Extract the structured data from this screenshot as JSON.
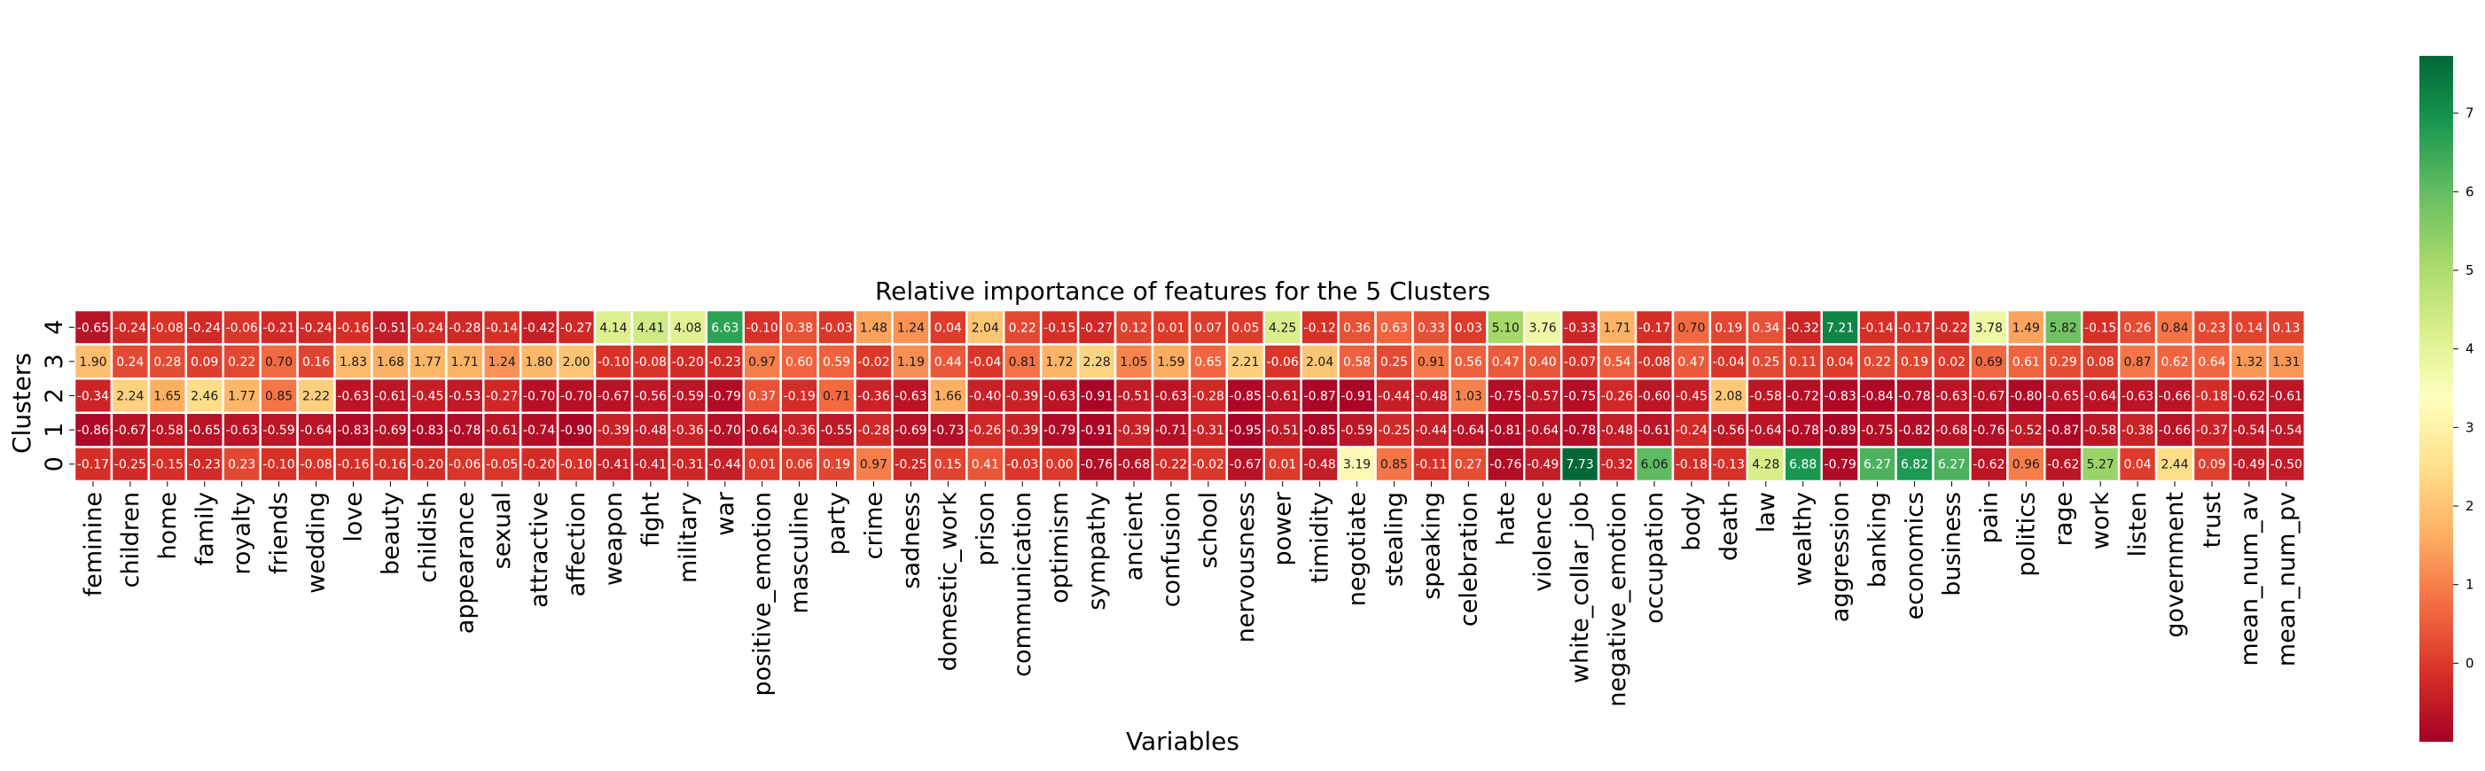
{
  "chart_data": {
    "type": "heatmap",
    "title": "Relative importance of features for the 5 Clusters",
    "xlabel": "Variables",
    "ylabel": "Clusters",
    "colormap": "RdYlGn",
    "colorbar": {
      "range": [
        -1.0,
        7.73
      ],
      "ticks": [
        0,
        1,
        2,
        3,
        4,
        5,
        6,
        7
      ]
    },
    "columns": [
      "feminine",
      "children",
      "home",
      "family",
      "royalty",
      "friends",
      "wedding",
      "love",
      "beauty",
      "childish",
      "appearance",
      "sexual",
      "attractive",
      "affection",
      "weapon",
      "fight",
      "military",
      "war",
      "positive_emotion",
      "masculine",
      "party",
      "crime",
      "sadness",
      "domestic_work",
      "prison",
      "communication",
      "optimism",
      "sympathy",
      "ancient",
      "confusion",
      "school",
      "nervousness",
      "power",
      "timidity",
      "negotiate",
      "stealing",
      "speaking",
      "celebration",
      "hate",
      "violence",
      "white_collar_job",
      "negative_emotion",
      "occupation",
      "body",
      "death",
      "law",
      "wealthy",
      "aggression",
      "banking",
      "economics",
      "business",
      "pain",
      "politics",
      "rage",
      "work",
      "listen",
      "government",
      "trust",
      "mean_num_av",
      "mean_num_pv"
    ],
    "rows": [
      {
        "label": "4",
        "values": [
          -0.65,
          -0.24,
          -0.08,
          -0.24,
          -0.06,
          -0.21,
          -0.24,
          -0.16,
          -0.51,
          -0.24,
          -0.28,
          -0.14,
          -0.42,
          -0.27,
          4.14,
          4.41,
          4.08,
          6.63,
          -0.1,
          0.38,
          -0.03,
          1.48,
          1.24,
          0.04,
          2.04,
          0.22,
          -0.15,
          -0.27,
          0.12,
          0.01,
          0.07,
          0.05,
          4.25,
          -0.12,
          0.36,
          0.63,
          0.33,
          0.03,
          5.1,
          3.76,
          -0.33,
          1.71,
          -0.17,
          0.7,
          0.19,
          0.34,
          -0.32,
          7.21,
          -0.14,
          -0.17,
          -0.22,
          3.78,
          1.49,
          5.82,
          -0.15,
          0.26,
          0.84,
          0.23,
          0.14,
          0.13
        ]
      },
      {
        "label": "3",
        "values": [
          1.9,
          0.24,
          0.28,
          0.09,
          0.22,
          0.7,
          0.16,
          1.83,
          1.68,
          1.77,
          1.71,
          1.24,
          1.8,
          2.0,
          -0.1,
          -0.08,
          -0.2,
          -0.23,
          0.97,
          0.6,
          0.59,
          -0.02,
          1.19,
          0.44,
          -0.04,
          0.81,
          1.72,
          2.28,
          1.05,
          1.59,
          0.65,
          2.21,
          -0.06,
          2.04,
          0.58,
          0.25,
          0.91,
          0.56,
          0.47,
          0.4,
          -0.07,
          0.54,
          -0.08,
          0.47,
          -0.04,
          0.25,
          0.11,
          0.04,
          0.22,
          0.19,
          0.02,
          0.69,
          0.61,
          0.29,
          0.08,
          0.87,
          0.62,
          0.64,
          1.32,
          1.31
        ]
      },
      {
        "label": "2",
        "values": [
          -0.34,
          2.24,
          1.65,
          2.46,
          1.77,
          0.85,
          2.22,
          -0.63,
          -0.61,
          -0.45,
          -0.53,
          -0.27,
          -0.7,
          -0.7,
          -0.67,
          -0.56,
          -0.59,
          -0.79,
          0.37,
          -0.19,
          0.71,
          -0.36,
          -0.63,
          1.66,
          -0.4,
          -0.39,
          -0.63,
          -0.91,
          -0.51,
          -0.63,
          -0.28,
          -0.85,
          -0.61,
          -0.87,
          -0.91,
          -0.44,
          -0.48,
          1.03,
          -0.75,
          -0.57,
          -0.75,
          -0.26,
          -0.6,
          -0.45,
          2.08,
          -0.58,
          -0.72,
          -0.83,
          -0.84,
          -0.78,
          -0.63,
          -0.67,
          -0.8,
          -0.65,
          -0.64,
          -0.63,
          -0.66,
          -0.18,
          -0.62,
          -0.61
        ]
      },
      {
        "label": "1",
        "values": [
          -0.86,
          -0.67,
          -0.58,
          -0.65,
          -0.63,
          -0.59,
          -0.64,
          -0.83,
          -0.69,
          -0.83,
          -0.78,
          -0.61,
          -0.74,
          -0.9,
          -0.39,
          -0.48,
          -0.36,
          -0.7,
          -0.64,
          -0.36,
          -0.55,
          -0.28,
          -0.69,
          -0.73,
          -0.26,
          -0.39,
          -0.79,
          -0.91,
          -0.39,
          -0.71,
          -0.31,
          -0.95,
          -0.51,
          -0.85,
          -0.59,
          -0.25,
          -0.44,
          -0.64,
          -0.81,
          -0.64,
          -0.78,
          -0.48,
          -0.61,
          -0.24,
          -0.56,
          -0.64,
          -0.78,
          -0.89,
          -0.75,
          -0.82,
          -0.68,
          -0.76,
          -0.52,
          -0.87,
          -0.58,
          -0.38,
          -0.66,
          -0.37,
          -0.54,
          -0.54
        ]
      },
      {
        "label": "0",
        "values": [
          -0.17,
          -0.25,
          -0.15,
          -0.23,
          0.23,
          -0.1,
          -0.08,
          -0.16,
          -0.16,
          -0.2,
          -0.06,
          -0.05,
          -0.2,
          -0.1,
          -0.41,
          -0.41,
          -0.31,
          -0.44,
          0.01,
          0.06,
          0.19,
          0.97,
          -0.25,
          0.15,
          0.41,
          -0.03,
          0.0,
          -0.76,
          -0.68,
          -0.22,
          -0.02,
          -0.67,
          0.01,
          -0.48,
          3.19,
          0.85,
          -0.11,
          0.27,
          -0.76,
          -0.49,
          7.73,
          -0.32,
          6.06,
          -0.18,
          -0.13,
          4.28,
          6.88,
          -0.79,
          6.27,
          6.82,
          6.27,
          -0.62,
          0.96,
          -0.62,
          5.27,
          0.04,
          2.44,
          0.09,
          -0.49,
          -0.5
        ]
      }
    ]
  }
}
